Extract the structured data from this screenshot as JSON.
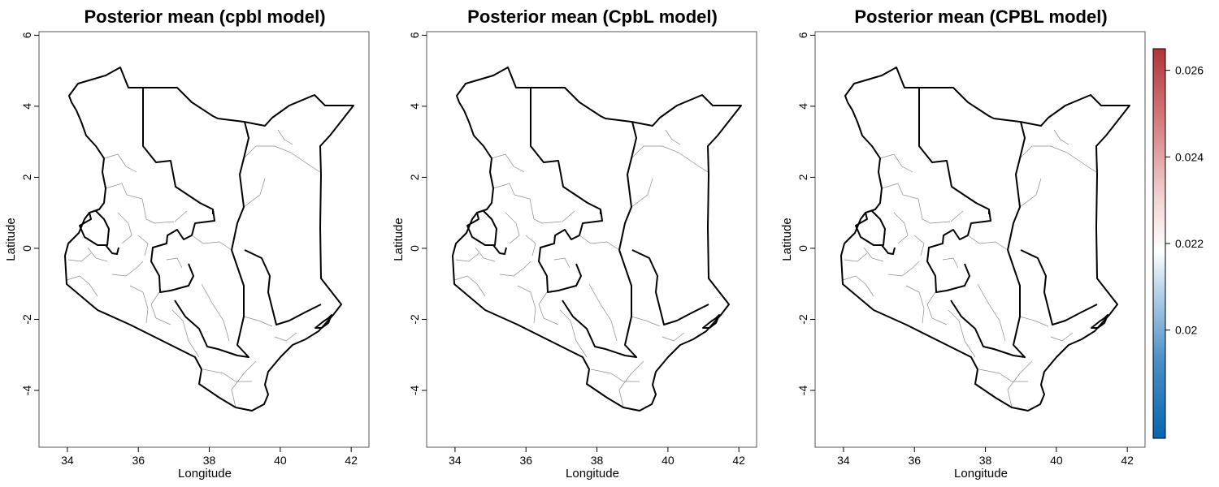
{
  "figure": {
    "panels": [
      {
        "title": "Posterior mean (cpbl model)",
        "xlabel": "Longitude",
        "ylabel": "Latitude"
      },
      {
        "title": "Posterior mean (CpbL model)",
        "xlabel": "Longitude",
        "ylabel": "Latitude"
      },
      {
        "title": "Posterior mean (CPBL model)",
        "xlabel": "Longitude",
        "ylabel": "Latitude"
      }
    ],
    "x_ticks": [
      "34",
      "36",
      "38",
      "40",
      "42"
    ],
    "y_ticks": [
      "-4",
      "-2",
      "0",
      "2",
      "4",
      "6"
    ],
    "colorbar": {
      "ticks": [
        "0.02",
        "0.022",
        "0.024",
        "0.026"
      ],
      "colors": [
        "#2166ac",
        "#4393c3",
        "#92c5de",
        "#f7f7f7",
        "#f4a582",
        "#d6604d",
        "#b2182b"
      ]
    }
  },
  "chart_data": {
    "type": "map",
    "region": "Kenya",
    "xlim": [
      33.2,
      42.5
    ],
    "ylim": [
      -5.6,
      6.1
    ],
    "colorbar_range": [
      0.0175,
      0.0265
    ],
    "colorbar_ticks": [
      0.02,
      0.022,
      0.024,
      0.026
    ]
  }
}
